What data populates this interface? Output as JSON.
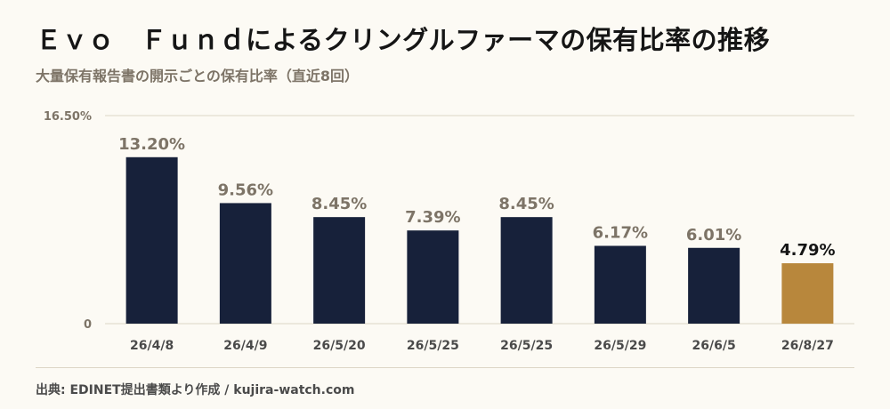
{
  "title": "Ｅｖｏ　Ｆｕｎｄによるクリングルファーマの保有比率の推移",
  "subtitle": "大量保有報告書の開示ごとの保有比率（直近8回）",
  "footer": "出典: EDINET提出書類より作成 / kujira-watch.com",
  "colors": {
    "bar": "#17213a",
    "highlight_bar": "#b8873c",
    "label": "#7d7467",
    "highlight_label": "#151515",
    "axis_text": "#7d7467",
    "grid": "#ddd6c6"
  },
  "chart_data": {
    "type": "bar",
    "categories": [
      "26/4/8",
      "26/4/9",
      "26/5/20",
      "26/5/25",
      "26/5/25",
      "26/5/29",
      "26/6/5",
      "26/8/27"
    ],
    "values": [
      13.2,
      9.56,
      8.45,
      7.39,
      8.45,
      6.17,
      6.01,
      4.79
    ],
    "value_labels": [
      "13.20%",
      "9.56%",
      "8.45%",
      "7.39%",
      "8.45%",
      "6.17%",
      "6.01%",
      "4.79%"
    ],
    "highlight_index": 7,
    "ylim": [
      0,
      16.5
    ],
    "yticks": [
      "0",
      "16.50%"
    ],
    "grid": true
  }
}
